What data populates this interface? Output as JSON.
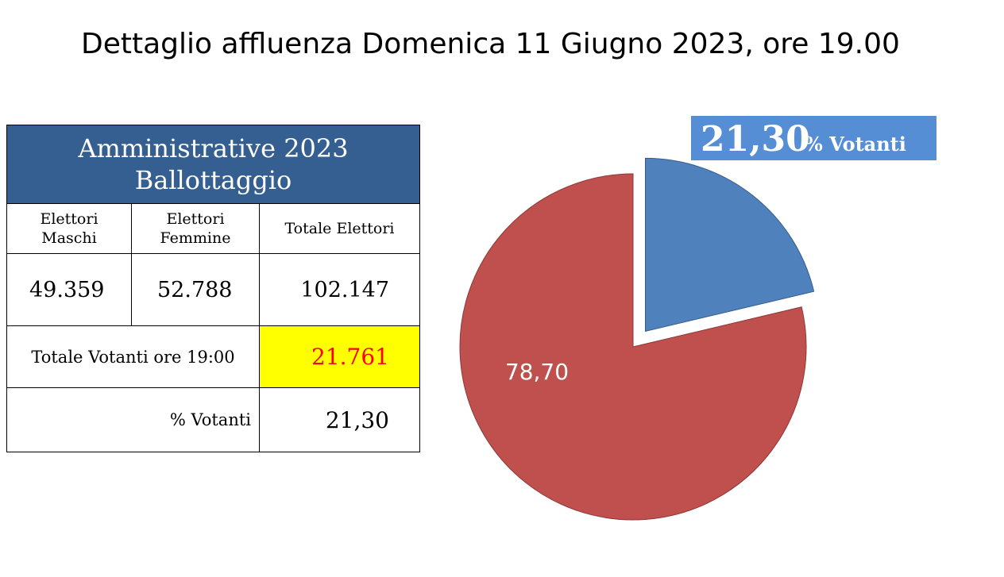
{
  "title": "Dettaglio affluenza Domenica 11 Giugno 2023, ore 19.00",
  "table": {
    "heading_line1": "Amministrative 2023",
    "heading_line2": "Ballottaggio",
    "col_maschi_line1": "Elettori",
    "col_maschi_line2": "Maschi",
    "col_femmine_line1": "Elettori",
    "col_femmine_line2": "Femmine",
    "col_totale": "Totale Elettori",
    "elettori_maschi": "49.359",
    "elettori_femmine": "52.788",
    "totale_elettori": "102.147",
    "totale_votanti_label": "Totale Votanti ore 19:00",
    "totale_votanti": "21.761",
    "pct_votanti_label": "% Votanti",
    "pct_votanti": "21,30"
  },
  "chart_data": {
    "type": "pie",
    "slices": [
      {
        "label": "21,30",
        "value": 21.3,
        "color": "#4f81bd",
        "exploded": true
      },
      {
        "label": "78,70",
        "value": 78.7,
        "color": "#c0504d",
        "exploded": false
      }
    ],
    "callout": {
      "value": "21,30",
      "text": "% Votanti",
      "color": "#558ed5"
    }
  }
}
